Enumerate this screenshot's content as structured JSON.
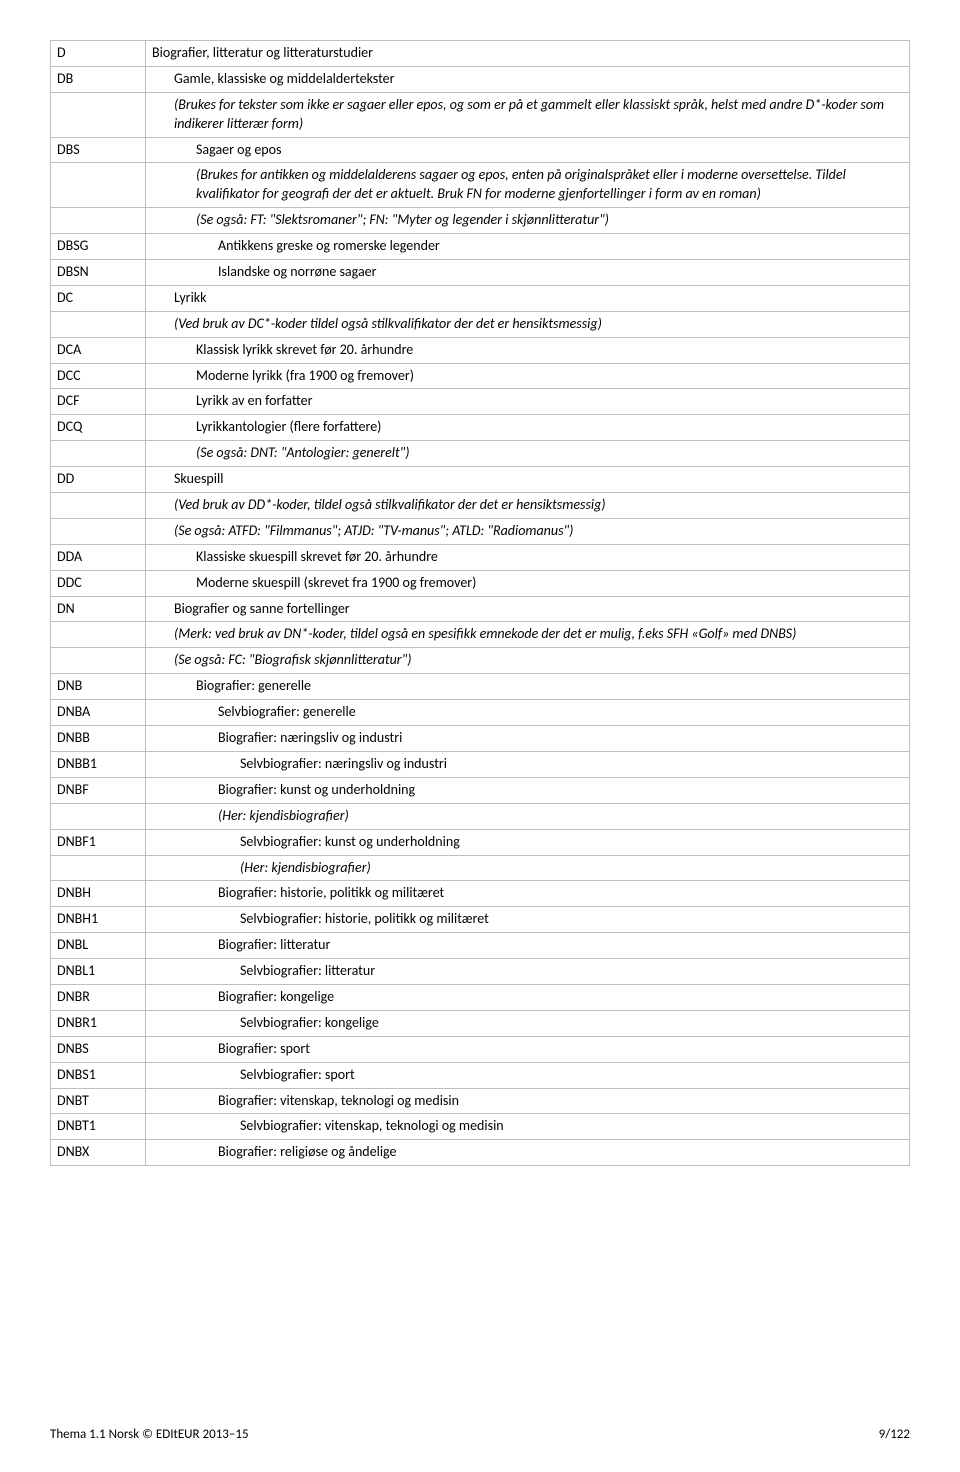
{
  "rows": [
    {
      "code": "D",
      "desc": "Biografier, litteratur og litteraturstudier",
      "indent": 0,
      "italic": false
    },
    {
      "code": "DB",
      "desc": "Gamle, klassiske og middelaldertekster",
      "indent": 1,
      "italic": false
    },
    {
      "code": "",
      "desc": "(Brukes for tekster som ikke er sagaer eller epos, og som er på et gammelt eller klassiskt språk, helst med andre D*-koder som indikerer litterær form)",
      "indent": 1,
      "italic": true
    },
    {
      "code": "DBS",
      "desc": "Sagaer og epos",
      "indent": 2,
      "italic": false
    },
    {
      "code": "",
      "desc": "(Brukes for antikken og middelalderens sagaer og epos, enten på originalspråket eller i moderne oversettelse. Tildel kvalifikator for geografi der det er aktuelt. Bruk FN for moderne gjenfortellinger i form av en roman)",
      "indent": 2,
      "italic": true
    },
    {
      "code": "",
      "desc": "(Se også: FT: \"Slektsromaner\"; FN: \"Myter og legender i skjønnlitteratur\")",
      "indent": 2,
      "italic": true
    },
    {
      "code": "DBSG",
      "desc": "Antikkens greske og romerske legender",
      "indent": 3,
      "italic": false
    },
    {
      "code": "DBSN",
      "desc": "Islandske og norrøne sagaer",
      "indent": 3,
      "italic": false
    },
    {
      "code": "DC",
      "desc": "Lyrikk",
      "indent": 1,
      "italic": false
    },
    {
      "code": "",
      "desc": "(Ved bruk av DC*-koder tildel også stilkvalifikator der det er hensiktsmessig)",
      "indent": 1,
      "italic": true
    },
    {
      "code": "DCA",
      "desc": "Klassisk lyrikk skrevet før 20. århundre",
      "indent": 2,
      "italic": false
    },
    {
      "code": "DCC",
      "desc": "Moderne lyrikk (fra 1900 og fremover)",
      "indent": 2,
      "italic": false
    },
    {
      "code": "DCF",
      "desc": "Lyrikk av en forfatter",
      "indent": 2,
      "italic": false
    },
    {
      "code": "DCQ",
      "desc": "Lyrikkantologier (flere forfattere)",
      "indent": 2,
      "italic": false
    },
    {
      "code": "",
      "desc": "(Se også: DNT: \"Antologier: generelt\")",
      "indent": 2,
      "italic": true
    },
    {
      "code": "DD",
      "desc": "Skuespill",
      "indent": 1,
      "italic": false
    },
    {
      "code": "",
      "desc": "(Ved bruk av DD*-koder, tildel også stilkvalifikator der det er hensiktsmessig)",
      "indent": 1,
      "italic": true
    },
    {
      "code": "",
      "desc": "(Se også: ATFD: \"Filmmanus\"; ATJD: \"TV-manus\"; ATLD: \"Radiomanus\")",
      "indent": 1,
      "italic": true
    },
    {
      "code": "DDA",
      "desc": "Klassiske skuespill skrevet før 20. århundre",
      "indent": 2,
      "italic": false
    },
    {
      "code": "DDC",
      "desc": "Moderne skuespill (skrevet fra 1900 og fremover)",
      "indent": 2,
      "italic": false
    },
    {
      "code": "DN",
      "desc": "Biografier og sanne fortellinger",
      "indent": 1,
      "italic": false
    },
    {
      "code": "",
      "desc": "(Merk: ved bruk av DN*-koder, tildel også en spesifikk emnekode der det er mulig, f.eks SFH «Golf» med DNBS)",
      "indent": 1,
      "italic": true
    },
    {
      "code": "",
      "desc": "(Se også: FC: \"Biografisk skjønnlitteratur\")",
      "indent": 1,
      "italic": true
    },
    {
      "code": "DNB",
      "desc": "Biografier: generelle",
      "indent": 2,
      "italic": false
    },
    {
      "code": "DNBA",
      "desc": "Selvbiografier: generelle",
      "indent": 3,
      "italic": false
    },
    {
      "code": "DNBB",
      "desc": "Biografier: næringsliv og industri",
      "indent": 3,
      "italic": false
    },
    {
      "code": "DNBB1",
      "desc": "Selvbiografier: næringsliv og industri",
      "indent": 3,
      "italic": false,
      "extraIndent": true
    },
    {
      "code": "DNBF",
      "desc": "Biografier: kunst og underholdning",
      "indent": 3,
      "italic": false
    },
    {
      "code": "",
      "desc": "(Her: kjendisbiografier)",
      "indent": 3,
      "italic": true
    },
    {
      "code": "DNBF1",
      "desc": "Selvbiografier: kunst og underholdning",
      "indent": 3,
      "italic": false,
      "extraIndent": true
    },
    {
      "code": "",
      "desc": "(Her: kjendisbiografier)",
      "indent": 3,
      "italic": true,
      "extraIndent": true
    },
    {
      "code": "DNBH",
      "desc": "Biografier: historie, politikk og militæret",
      "indent": 3,
      "italic": false
    },
    {
      "code": "DNBH1",
      "desc": "Selvbiografier: historie, politikk og militæret",
      "indent": 3,
      "italic": false,
      "extraIndent": true
    },
    {
      "code": "DNBL",
      "desc": "Biografier: litteratur",
      "indent": 3,
      "italic": false
    },
    {
      "code": "DNBL1",
      "desc": "Selvbiografier: litteratur",
      "indent": 3,
      "italic": false,
      "extraIndent": true
    },
    {
      "code": "DNBR",
      "desc": "Biografier: kongelige",
      "indent": 3,
      "italic": false
    },
    {
      "code": "DNBR1",
      "desc": "Selvbiografier: kongelige",
      "indent": 3,
      "italic": false,
      "extraIndent": true
    },
    {
      "code": "DNBS",
      "desc": "Biografier: sport",
      "indent": 3,
      "italic": false
    },
    {
      "code": "DNBS1",
      "desc": "Selvbiografier: sport",
      "indent": 3,
      "italic": false,
      "extraIndent": true
    },
    {
      "code": "DNBT",
      "desc": "Biografier: vitenskap, teknologi og medisin",
      "indent": 3,
      "italic": false
    },
    {
      "code": "DNBT1",
      "desc": "Selvbiografier: vitenskap, teknologi og medisin",
      "indent": 3,
      "italic": false,
      "extraIndent": true
    },
    {
      "code": "DNBX",
      "desc": "Biografier: religiøse og åndelige",
      "indent": 3,
      "italic": false
    }
  ],
  "footer": {
    "left": "Thema 1.1 Norsk © EDItEUR 2013–15",
    "right": "9/122"
  }
}
